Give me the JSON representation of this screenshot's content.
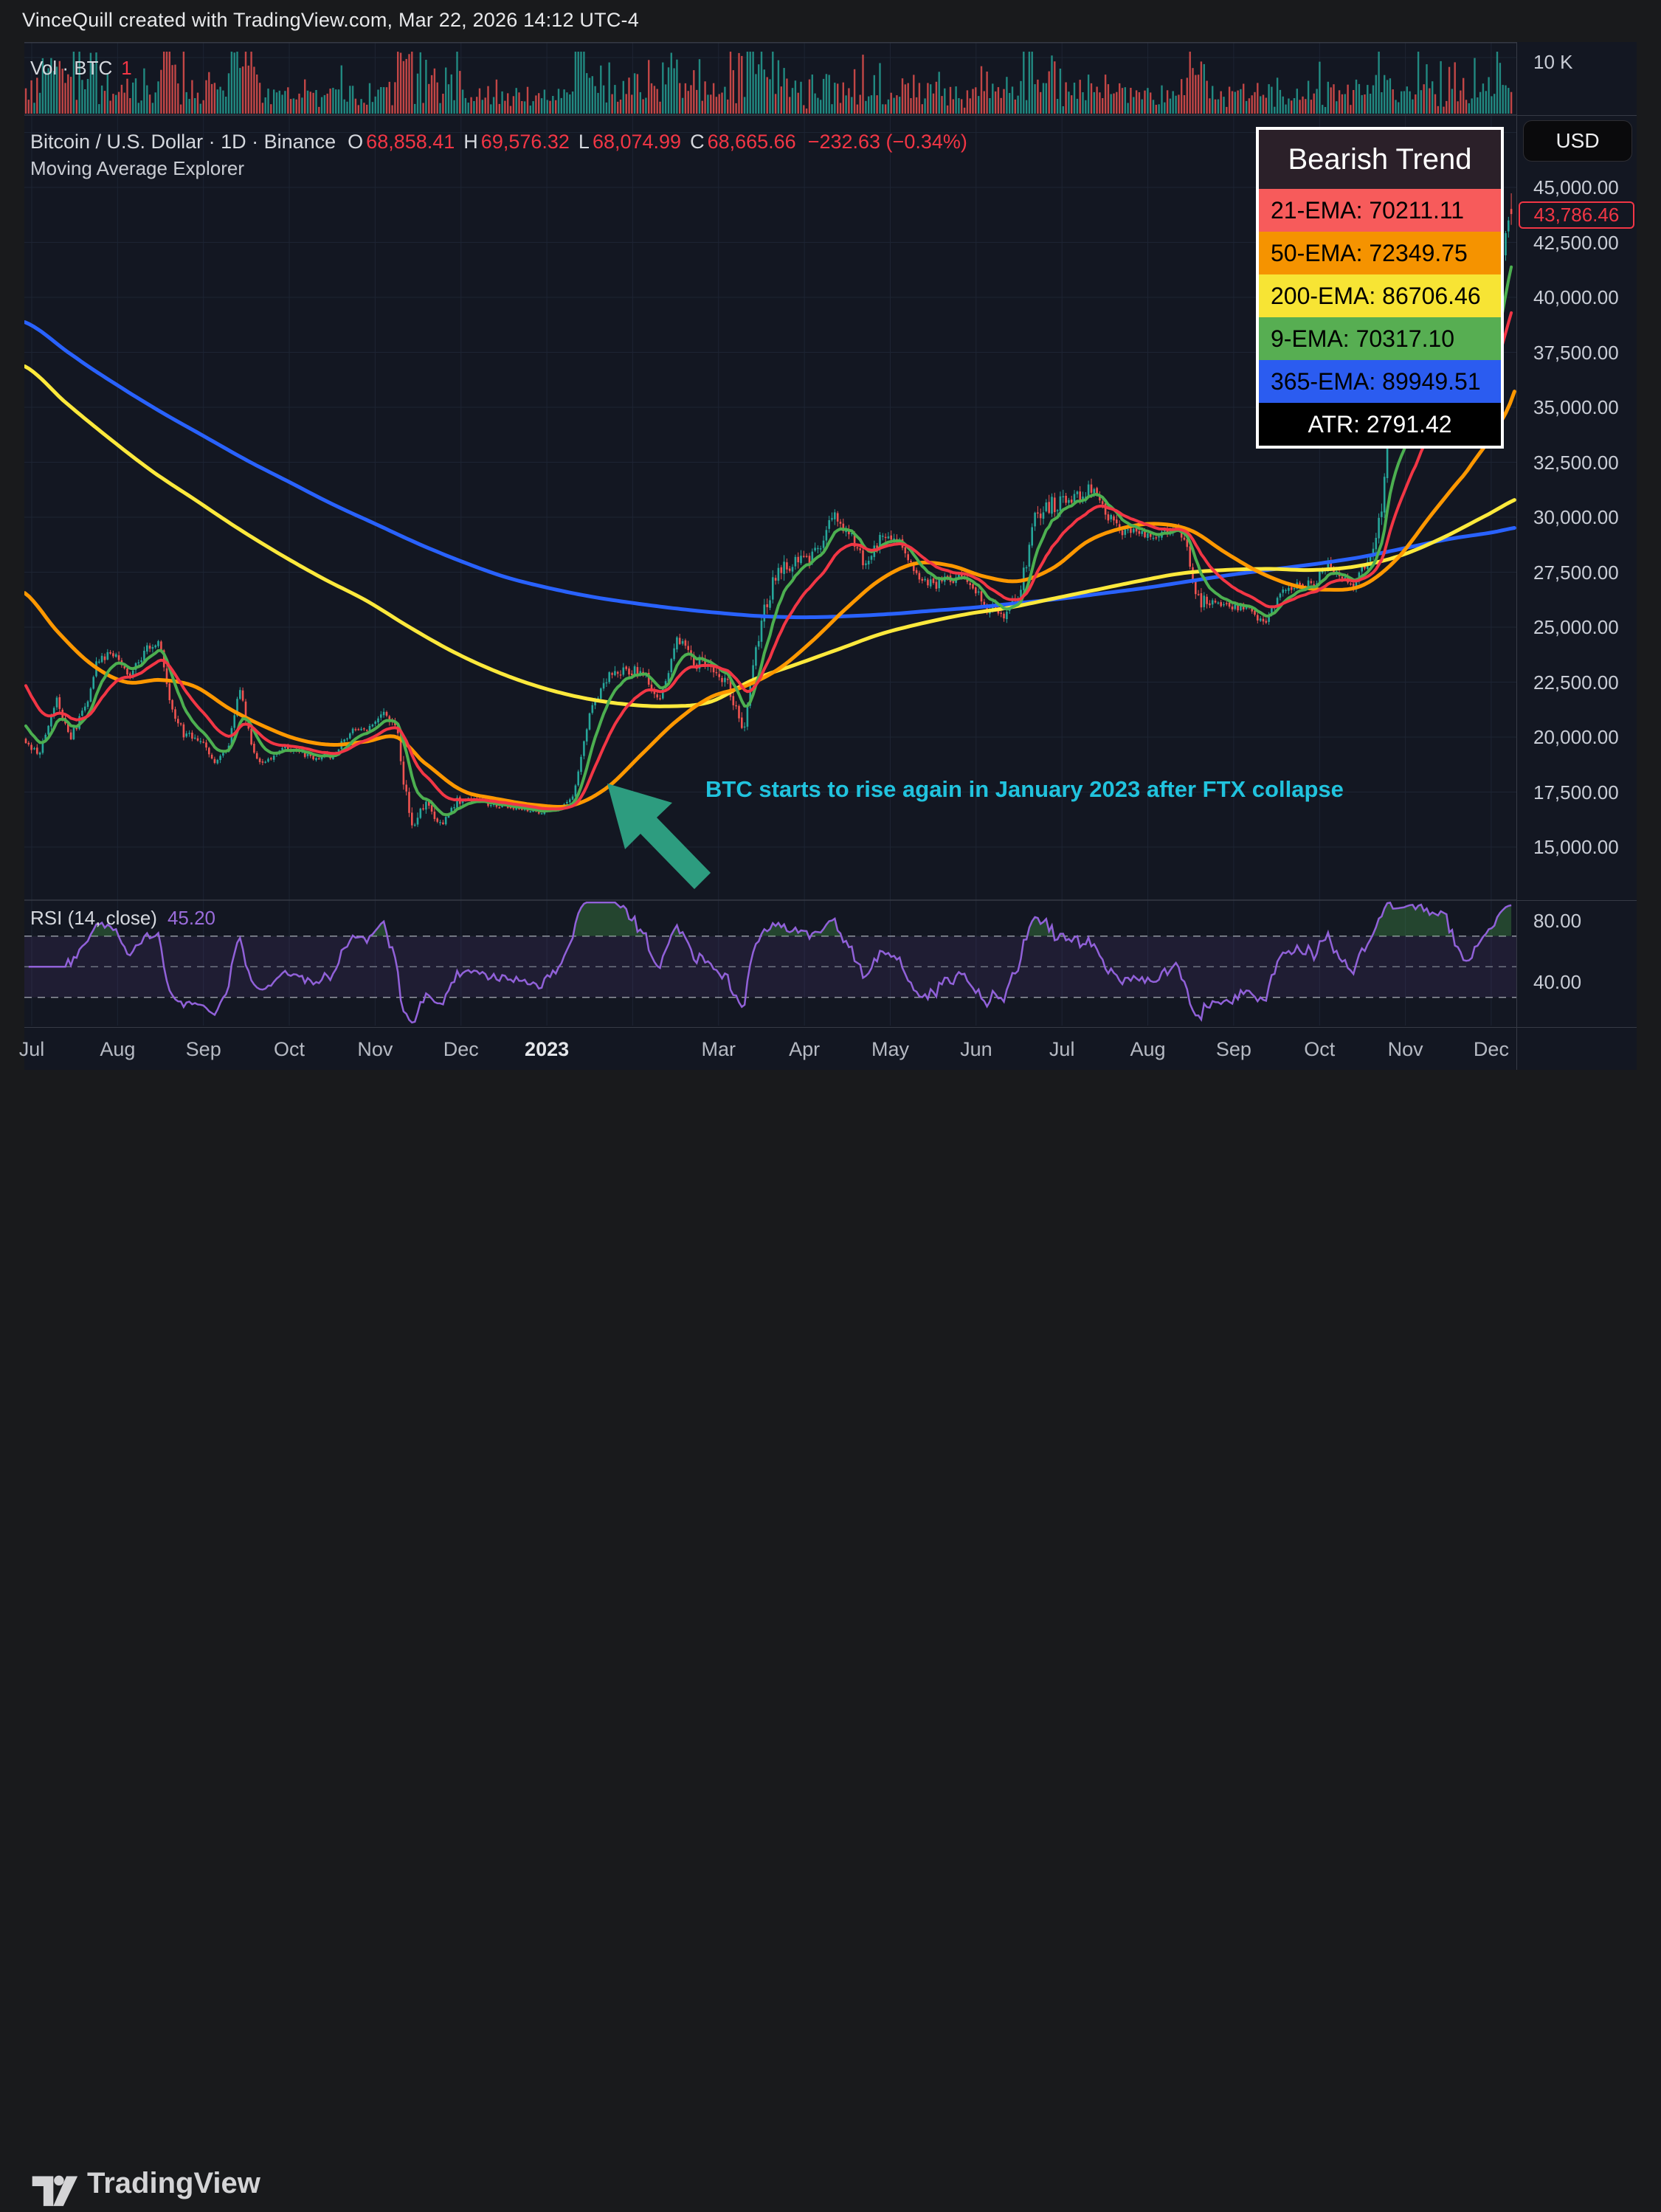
{
  "header": {
    "title": "VinceQuill created with TradingView.com, Mar 22, 2026 14:12 UTC-4"
  },
  "volume_pane": {
    "label": "Vol · BTC",
    "value": "1",
    "scale_label": "10 K"
  },
  "symbol_line": {
    "title": "Bitcoin / U.S. Dollar · 1D · Binance",
    "ohlc": [
      {
        "k": "O",
        "v": "68,858.41"
      },
      {
        "k": "H",
        "v": "69,576.32"
      },
      {
        "k": "L",
        "v": "68,074.99"
      },
      {
        "k": "C",
        "v": "68,665.66"
      }
    ],
    "change": "−232.63 (−0.34%)"
  },
  "indicator_label": "Moving Average Explorer",
  "ma_legend": {
    "title": "Bearish Trend",
    "title_bg": "#2b2029",
    "rows": [
      {
        "label": "21-EMA: 70211.11",
        "bg": "#f75b5b",
        "fg": "#000000"
      },
      {
        "label": "50-EMA: 72349.75",
        "bg": "#f59300",
        "fg": "#000000"
      },
      {
        "label": "200-EMA: 86706.46",
        "bg": "#f7e434",
        "fg": "#000000"
      },
      {
        "label": "9-EMA: 70317.10",
        "bg": "#57ae52",
        "fg": "#000000"
      },
      {
        "label": "365-EMA: 89949.51",
        "bg": "#2b5cf0",
        "fg": "#000000"
      },
      {
        "label": "ATR: 2791.42",
        "bg": "#000000",
        "fg": "#ffffff"
      }
    ]
  },
  "currency_button": {
    "label": "USD"
  },
  "price_axis": {
    "ticks": [
      {
        "label": "45,000.00",
        "value": 45000
      },
      {
        "label": "42,500.00",
        "value": 42500
      },
      {
        "label": "40,000.00",
        "value": 40000
      },
      {
        "label": "37,500.00",
        "value": 37500
      },
      {
        "label": "35,000.00",
        "value": 35000
      },
      {
        "label": "32,500.00",
        "value": 32500
      },
      {
        "label": "30,000.00",
        "value": 30000
      },
      {
        "label": "27,500.00",
        "value": 27500
      },
      {
        "label": "25,000.00",
        "value": 25000
      },
      {
        "label": "22,500.00",
        "value": 22500
      },
      {
        "label": "20,000.00",
        "value": 20000
      },
      {
        "label": "17,500.00",
        "value": 17500
      },
      {
        "label": "15,000.00",
        "value": 15000
      }
    ],
    "last_price": {
      "label": "43,786.46",
      "value": 43786.46,
      "color": "#f23645"
    }
  },
  "rsi_pane": {
    "label": "RSI (14, close)",
    "value": "45.20",
    "axis_ticks": [
      {
        "label": "80.00",
        "value": 80
      },
      {
        "label": "40.00",
        "value": 40
      }
    ]
  },
  "time_axis": {
    "labels": [
      {
        "text": "Jul",
        "m": 0
      },
      {
        "text": "Aug",
        "m": 1
      },
      {
        "text": "Sep",
        "m": 2
      },
      {
        "text": "Oct",
        "m": 3
      },
      {
        "text": "Nov",
        "m": 4
      },
      {
        "text": "Dec",
        "m": 5
      },
      {
        "text": "2023",
        "m": 6,
        "bold": true
      },
      {
        "text": "Mar",
        "m": 8
      },
      {
        "text": "Apr",
        "m": 9
      },
      {
        "text": "May",
        "m": 10
      },
      {
        "text": "Jun",
        "m": 11
      },
      {
        "text": "Jul",
        "m": 12
      },
      {
        "text": "Aug",
        "m": 13
      },
      {
        "text": "Sep",
        "m": 14
      },
      {
        "text": "Oct",
        "m": 15
      },
      {
        "text": "Nov",
        "m": 16
      },
      {
        "text": "Dec",
        "m": 17
      }
    ]
  },
  "annotation": {
    "text": "BTC starts to rise again in January 2023 after FTX collapse",
    "text_color": "#21c3de",
    "arrow_color": "#2d9c7f"
  },
  "footer": {
    "brand": "TradingView"
  },
  "chart_data": {
    "type": "candlestick",
    "title": "Bitcoin / U.S. Dollar · 1D · Binance",
    "ylabel": "USD",
    "price_axis_range": [
      12650,
      48200
    ],
    "grid": true,
    "legend_position": "top-right",
    "colors": {
      "up": "#26a69a",
      "down": "#ef5350",
      "grid": "#1d2433",
      "separator": "#363a45",
      "background": "#131722",
      "rsi_line": "#9161d9",
      "rsi_band": "#8854d0",
      "rsi_overbought_fill": "#4caf50",
      "rsi_dash": "#9296a0"
    },
    "close_anchors": [
      [
        -0.1,
        19600
      ],
      [
        0.1,
        19300
      ],
      [
        0.28,
        21800
      ],
      [
        0.45,
        20000
      ],
      [
        0.62,
        21300
      ],
      [
        0.75,
        23300
      ],
      [
        0.95,
        23800
      ],
      [
        1.15,
        22900
      ],
      [
        1.35,
        24100
      ],
      [
        1.48,
        24400
      ],
      [
        1.62,
        21300
      ],
      [
        1.78,
        20100
      ],
      [
        1.95,
        19900
      ],
      [
        2.12,
        18800
      ],
      [
        2.28,
        19300
      ],
      [
        2.42,
        22300
      ],
      [
        2.58,
        19200
      ],
      [
        2.72,
        18800
      ],
      [
        2.88,
        19500
      ],
      [
        3.05,
        19400
      ],
      [
        3.25,
        19100
      ],
      [
        3.5,
        19150
      ],
      [
        3.75,
        20400
      ],
      [
        3.95,
        20400
      ],
      [
        4.12,
        21100
      ],
      [
        4.26,
        20600
      ],
      [
        4.34,
        17600
      ],
      [
        4.44,
        15950
      ],
      [
        4.58,
        16800
      ],
      [
        4.78,
        15900
      ],
      [
        4.95,
        17100
      ],
      [
        5.15,
        17150
      ],
      [
        5.4,
        16900
      ],
      [
        5.65,
        16750
      ],
      [
        5.9,
        16550
      ],
      [
        6.1,
        16700
      ],
      [
        6.3,
        17250
      ],
      [
        6.5,
        21000
      ],
      [
        6.7,
        22700
      ],
      [
        6.92,
        23100
      ],
      [
        7.12,
        22950
      ],
      [
        7.32,
        21750
      ],
      [
        7.52,
        24450
      ],
      [
        7.72,
        23400
      ],
      [
        7.92,
        23300
      ],
      [
        8.12,
        22350
      ],
      [
        8.3,
        20300
      ],
      [
        8.47,
        24800
      ],
      [
        8.67,
        27500
      ],
      [
        8.92,
        28050
      ],
      [
        9.12,
        28300
      ],
      [
        9.32,
        30100
      ],
      [
        9.52,
        29400
      ],
      [
        9.72,
        27650
      ],
      [
        9.92,
        29350
      ],
      [
        10.12,
        28900
      ],
      [
        10.32,
        27250
      ],
      [
        10.52,
        26900
      ],
      [
        10.72,
        27250
      ],
      [
        10.92,
        27150
      ],
      [
        11.12,
        25900
      ],
      [
        11.32,
        25650
      ],
      [
        11.52,
        26750
      ],
      [
        11.7,
        30150
      ],
      [
        11.88,
        30550
      ],
      [
        12.1,
        30650
      ],
      [
        12.32,
        31300
      ],
      [
        12.52,
        30150
      ],
      [
        12.72,
        29350
      ],
      [
        12.92,
        29250
      ],
      [
        13.12,
        29150
      ],
      [
        13.28,
        29450
      ],
      [
        13.42,
        29300
      ],
      [
        13.56,
        26300
      ],
      [
        13.76,
        26050
      ],
      [
        13.95,
        25950
      ],
      [
        14.15,
        25850
      ],
      [
        14.35,
        25100
      ],
      [
        14.55,
        26550
      ],
      [
        14.75,
        27000
      ],
      [
        14.95,
        26950
      ],
      [
        15.08,
        27900
      ],
      [
        15.18,
        27400
      ],
      [
        15.38,
        26850
      ],
      [
        15.58,
        28350
      ],
      [
        15.72,
        30050
      ],
      [
        15.8,
        33950
      ],
      [
        15.95,
        34400
      ],
      [
        16.12,
        35250
      ],
      [
        16.3,
        36900
      ],
      [
        16.48,
        37700
      ],
      [
        16.62,
        36100
      ],
      [
        16.78,
        35950
      ],
      [
        16.92,
        37750
      ],
      [
        17.04,
        38850
      ],
      [
        17.12,
        41300
      ],
      [
        17.2,
        43900
      ],
      [
        17.27,
        43786.46
      ]
    ],
    "volatility_anchors": [
      [
        -0.1,
        1.0
      ],
      [
        1.5,
        1.0
      ],
      [
        2.2,
        0.85
      ],
      [
        4.0,
        0.6
      ],
      [
        4.25,
        1.6
      ],
      [
        4.5,
        2.2
      ],
      [
        5.0,
        0.9
      ],
      [
        5.8,
        0.35
      ],
      [
        6.3,
        0.6
      ],
      [
        6.6,
        1.3
      ],
      [
        7.2,
        1.1
      ],
      [
        8.3,
        1.5
      ],
      [
        8.6,
        1.6
      ],
      [
        9.5,
        1.0
      ],
      [
        10.5,
        0.8
      ],
      [
        11.3,
        1.1
      ],
      [
        11.7,
        1.4
      ],
      [
        12.5,
        0.9
      ],
      [
        13.3,
        0.7
      ],
      [
        13.55,
        1.7
      ],
      [
        13.8,
        0.5
      ],
      [
        14.5,
        0.7
      ],
      [
        15.3,
        0.8
      ],
      [
        15.78,
        1.6
      ],
      [
        16.2,
        1.2
      ],
      [
        16.8,
        1.1
      ],
      [
        17.1,
        1.4
      ],
      [
        17.27,
        1.5
      ]
    ],
    "last_candle": {
      "open": 44019,
      "high": 44730,
      "low": 43300,
      "close": 43786.46
    },
    "volume_spikes": [
      [
        4.3,
        84
      ],
      [
        4.38,
        72
      ],
      [
        6.5,
        50
      ],
      [
        8.45,
        58
      ],
      [
        8.55,
        50
      ],
      [
        11.7,
        44
      ],
      [
        13.55,
        52
      ],
      [
        15.78,
        54
      ],
      [
        17.15,
        48
      ]
    ],
    "emas_computed": [
      {
        "name": "9-EMA",
        "period": 9,
        "seed": 20700,
        "color": "#4caf50",
        "width": 4
      },
      {
        "name": "21-EMA",
        "period": 21,
        "seed": 22600,
        "color": "#f23645",
        "width": 4
      }
    ],
    "emas_traced": [
      {
        "name": "365-EMA",
        "color": "#2962ff",
        "width": 5,
        "anchors": [
          [
            -0.1,
            38900
          ],
          [
            0.5,
            37300
          ],
          [
            1.0,
            36000
          ],
          [
            1.5,
            34800
          ],
          [
            2.0,
            33700
          ],
          [
            2.5,
            32600
          ],
          [
            3.0,
            31600
          ],
          [
            3.5,
            30600
          ],
          [
            4.0,
            29700
          ],
          [
            4.5,
            28800
          ],
          [
            5.0,
            28000
          ],
          [
            5.5,
            27300
          ],
          [
            6.0,
            26800
          ],
          [
            6.5,
            26400
          ],
          [
            7.0,
            26100
          ],
          [
            7.5,
            25850
          ],
          [
            8.0,
            25650
          ],
          [
            8.5,
            25500
          ],
          [
            9.0,
            25450
          ],
          [
            9.5,
            25500
          ],
          [
            10.0,
            25600
          ],
          [
            10.5,
            25750
          ],
          [
            11.0,
            25900
          ],
          [
            11.5,
            26100
          ],
          [
            12.0,
            26300
          ],
          [
            12.5,
            26550
          ],
          [
            13.0,
            26800
          ],
          [
            13.5,
            27100
          ],
          [
            14.0,
            27400
          ],
          [
            14.5,
            27650
          ],
          [
            15.0,
            27900
          ],
          [
            15.5,
            28200
          ],
          [
            16.0,
            28600
          ],
          [
            16.5,
            29000
          ],
          [
            17.0,
            29300
          ],
          [
            17.42,
            29600
          ]
        ]
      },
      {
        "name": "200-EMA",
        "color": "#fde93c",
        "width": 5,
        "anchors": [
          [
            -0.1,
            36900
          ],
          [
            0.4,
            35200
          ],
          [
            0.9,
            33600
          ],
          [
            1.4,
            32100
          ],
          [
            1.9,
            30800
          ],
          [
            2.4,
            29500
          ],
          [
            2.9,
            28300
          ],
          [
            3.4,
            27200
          ],
          [
            3.9,
            26200
          ],
          [
            4.4,
            25000
          ],
          [
            4.9,
            23900
          ],
          [
            5.4,
            23000
          ],
          [
            5.9,
            22300
          ],
          [
            6.4,
            21800
          ],
          [
            6.9,
            21500
          ],
          [
            7.4,
            21400
          ],
          [
            7.9,
            21600
          ],
          [
            8.4,
            22600
          ],
          [
            8.9,
            23300
          ],
          [
            9.4,
            24000
          ],
          [
            9.9,
            24700
          ],
          [
            10.4,
            25200
          ],
          [
            10.9,
            25600
          ],
          [
            11.4,
            25900
          ],
          [
            11.9,
            26300
          ],
          [
            12.4,
            26700
          ],
          [
            12.9,
            27100
          ],
          [
            13.4,
            27450
          ],
          [
            13.9,
            27600
          ],
          [
            14.4,
            27650
          ],
          [
            14.9,
            27600
          ],
          [
            15.4,
            27750
          ],
          [
            15.9,
            28200
          ],
          [
            16.4,
            29000
          ],
          [
            16.9,
            30000
          ],
          [
            17.42,
            31000
          ]
        ]
      },
      {
        "name": "50-EMA",
        "color": "#ff9800",
        "width": 5,
        "anchors": [
          [
            -0.1,
            26600
          ],
          [
            0.3,
            24800
          ],
          [
            0.7,
            23300
          ],
          [
            1.1,
            22500
          ],
          [
            1.5,
            22600
          ],
          [
            1.9,
            22300
          ],
          [
            2.3,
            21300
          ],
          [
            2.7,
            20500
          ],
          [
            3.1,
            19900
          ],
          [
            3.5,
            19650
          ],
          [
            3.9,
            19800
          ],
          [
            4.25,
            20000
          ],
          [
            4.55,
            18900
          ],
          [
            5.0,
            17600
          ],
          [
            5.4,
            17200
          ],
          [
            5.9,
            16900
          ],
          [
            6.3,
            16900
          ],
          [
            6.7,
            17700
          ],
          [
            7.1,
            19200
          ],
          [
            7.5,
            20700
          ],
          [
            7.9,
            21800
          ],
          [
            8.3,
            22300
          ],
          [
            8.7,
            23100
          ],
          [
            9.1,
            24400
          ],
          [
            9.5,
            25900
          ],
          [
            9.9,
            27200
          ],
          [
            10.3,
            27900
          ],
          [
            10.7,
            27800
          ],
          [
            11.1,
            27300
          ],
          [
            11.5,
            27100
          ],
          [
            11.9,
            27700
          ],
          [
            12.3,
            28900
          ],
          [
            12.7,
            29500
          ],
          [
            13.1,
            29700
          ],
          [
            13.5,
            29400
          ],
          [
            13.9,
            28400
          ],
          [
            14.3,
            27500
          ],
          [
            14.7,
            26900
          ],
          [
            15.1,
            26700
          ],
          [
            15.5,
            26900
          ],
          [
            15.9,
            28100
          ],
          [
            16.3,
            30100
          ],
          [
            16.7,
            32000
          ],
          [
            17.0,
            33600
          ],
          [
            17.2,
            35000
          ],
          [
            17.42,
            37200
          ]
        ]
      }
    ],
    "rsi": {
      "period": 14,
      "levels": [
        70,
        50,
        30
      ]
    }
  }
}
